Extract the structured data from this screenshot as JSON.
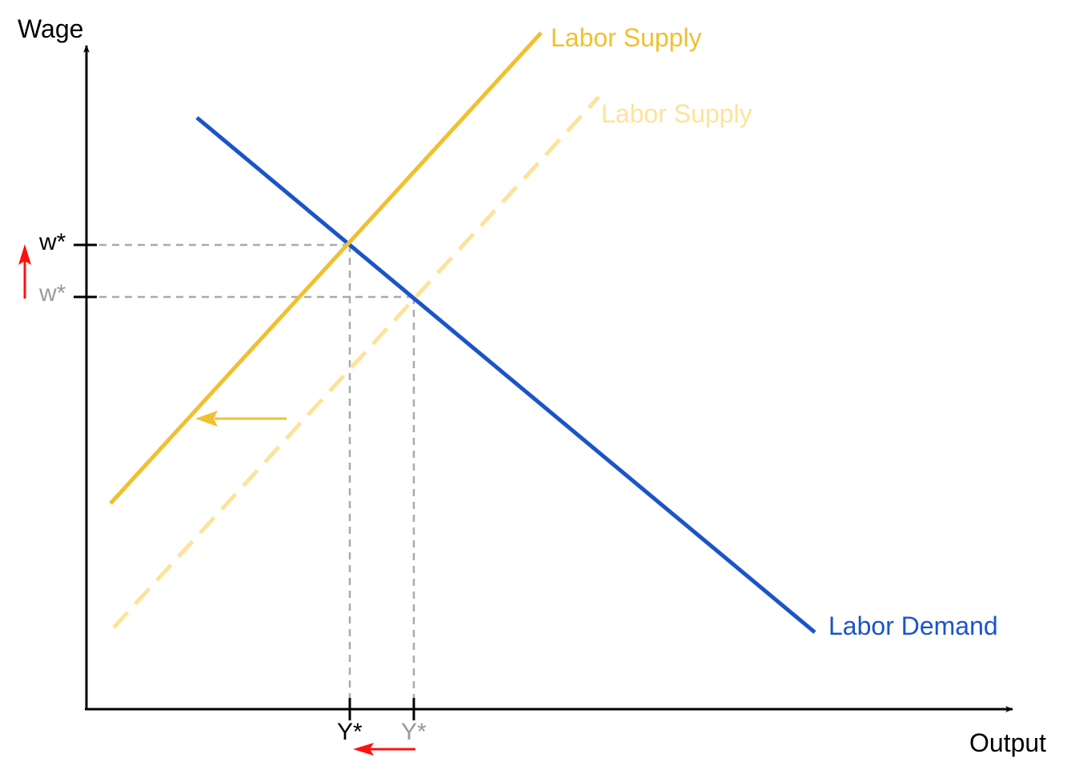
{
  "axes": {
    "y_label": "Wage",
    "x_label": "Output"
  },
  "curves": {
    "labor_supply_new": {
      "label": "Labor Supply",
      "color": "#f0c030",
      "style": "solid"
    },
    "labor_supply_old": {
      "label": "Labor Supply",
      "color": "#fde39a",
      "style": "dashed"
    },
    "labor_demand": {
      "label": "Labor Demand",
      "color": "#1a55c8",
      "style": "solid"
    }
  },
  "equilibria": {
    "new": {
      "wage_label": "w*",
      "output_label": "Y*",
      "label_color": "#000000"
    },
    "old": {
      "wage_label": "w*",
      "output_label": "Y*",
      "label_color": "#999999"
    }
  },
  "guide_color": "#aaaaaa",
  "arrows": {
    "supply_shift": {
      "direction": "left",
      "color": "#f0c030"
    },
    "wage_change": {
      "direction": "up",
      "color": "#ff1010"
    },
    "output_change": {
      "direction": "left",
      "color": "#ff1010"
    }
  }
}
